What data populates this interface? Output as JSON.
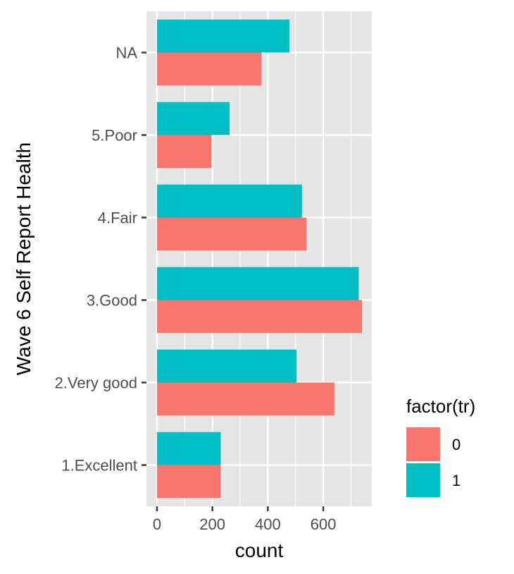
{
  "chart_data": {
    "type": "bar",
    "orientation": "horizontal",
    "position": "dodge",
    "categories": [
      "1.Excellent",
      "2.Very good",
      "3.Good",
      "4.Fair",
      "5.Poor",
      "NA"
    ],
    "series": [
      {
        "name": "0",
        "color": "#F8766D",
        "values": [
          230,
          640,
          740,
          540,
          197,
          377
        ]
      },
      {
        "name": "1",
        "color": "#00BFC4",
        "values": [
          230,
          503,
          728,
          523,
          262,
          478
        ]
      }
    ],
    "xlabel": "count",
    "ylabel": "Wave 6 Self Report Health",
    "xlim": [
      -38,
      775
    ],
    "x_ticks": [
      0,
      200,
      400,
      600
    ],
    "x_minor_ticks": [
      100,
      300,
      500,
      700
    ],
    "legend": {
      "title": "factor(tr)",
      "placement": "right"
    },
    "panel_background": "#E5E5E5",
    "grid": true
  }
}
